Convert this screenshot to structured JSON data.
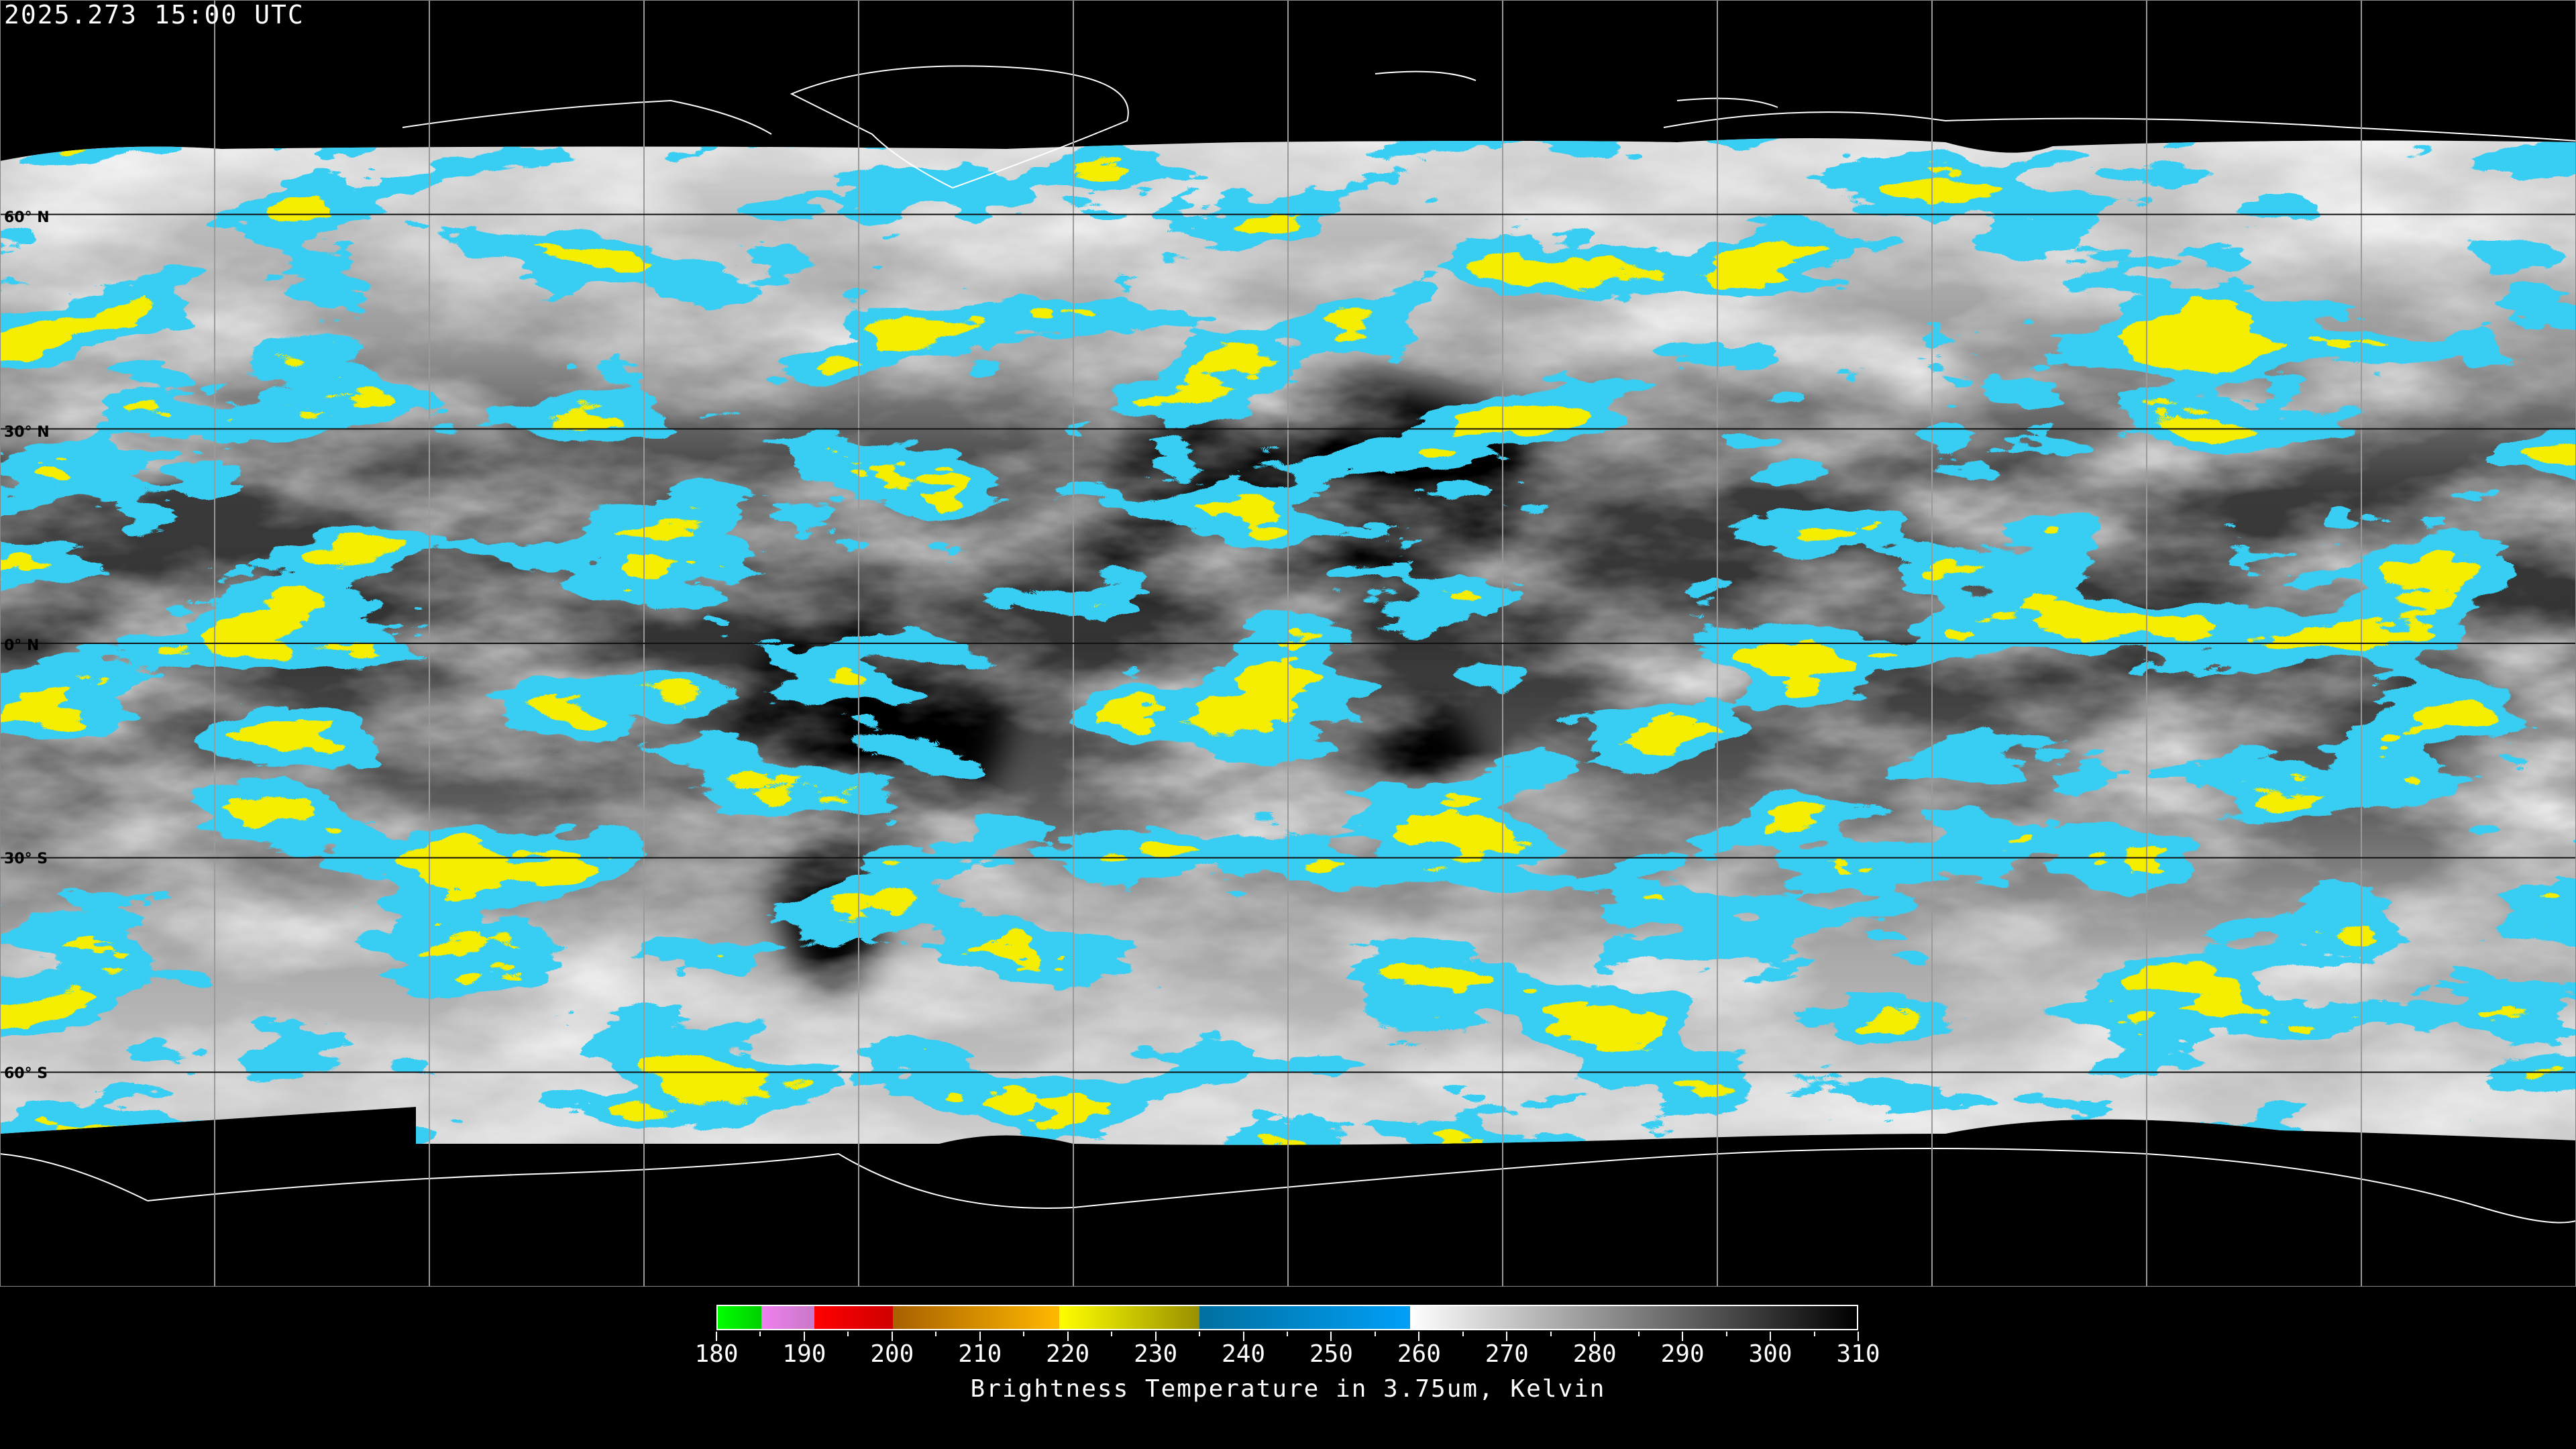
{
  "header": {
    "timestamp": "2025.273 15:00 UTC"
  },
  "map": {
    "projection": "equirectangular",
    "lat_labels": [
      "60° N",
      "30° N",
      "0° N",
      "30° S",
      "60° S"
    ],
    "grid_spacing_degrees": 30,
    "colors": {
      "background": "#000000",
      "grid": "#9a9a9a",
      "coastline": "#ffffff",
      "cold_cloud": "#0a9be2",
      "very_cold_cloud": "#e8d800",
      "coldest_cloud": "#e08000"
    }
  },
  "colorbar": {
    "title": "Brightness Temperature in 3.75um, Kelvin",
    "min": 180,
    "max": 310,
    "ticks": [
      "180",
      "190",
      "200",
      "210",
      "220",
      "230",
      "240",
      "250",
      "260",
      "270",
      "280",
      "290",
      "300",
      "310"
    ],
    "segments": [
      {
        "from": 180,
        "to": 185,
        "colors": [
          "#00ff00",
          "#00d000"
        ]
      },
      {
        "from": 185,
        "to": 191,
        "colors": [
          "#f080f0",
          "#c878c8"
        ]
      },
      {
        "from": 191,
        "to": 200,
        "colors": [
          "#ff0000",
          "#d00000"
        ]
      },
      {
        "from": 200,
        "to": 219,
        "colors": [
          "#a86000",
          "#ffb800"
        ]
      },
      {
        "from": 219,
        "to": 235,
        "colors": [
          "#ffff00",
          "#989000"
        ]
      },
      {
        "from": 235,
        "to": 259,
        "colors": [
          "#0070a0",
          "#00a0f8"
        ]
      },
      {
        "from": 259,
        "to": 310,
        "colors": [
          "#ffffff",
          "#000000"
        ]
      }
    ]
  }
}
